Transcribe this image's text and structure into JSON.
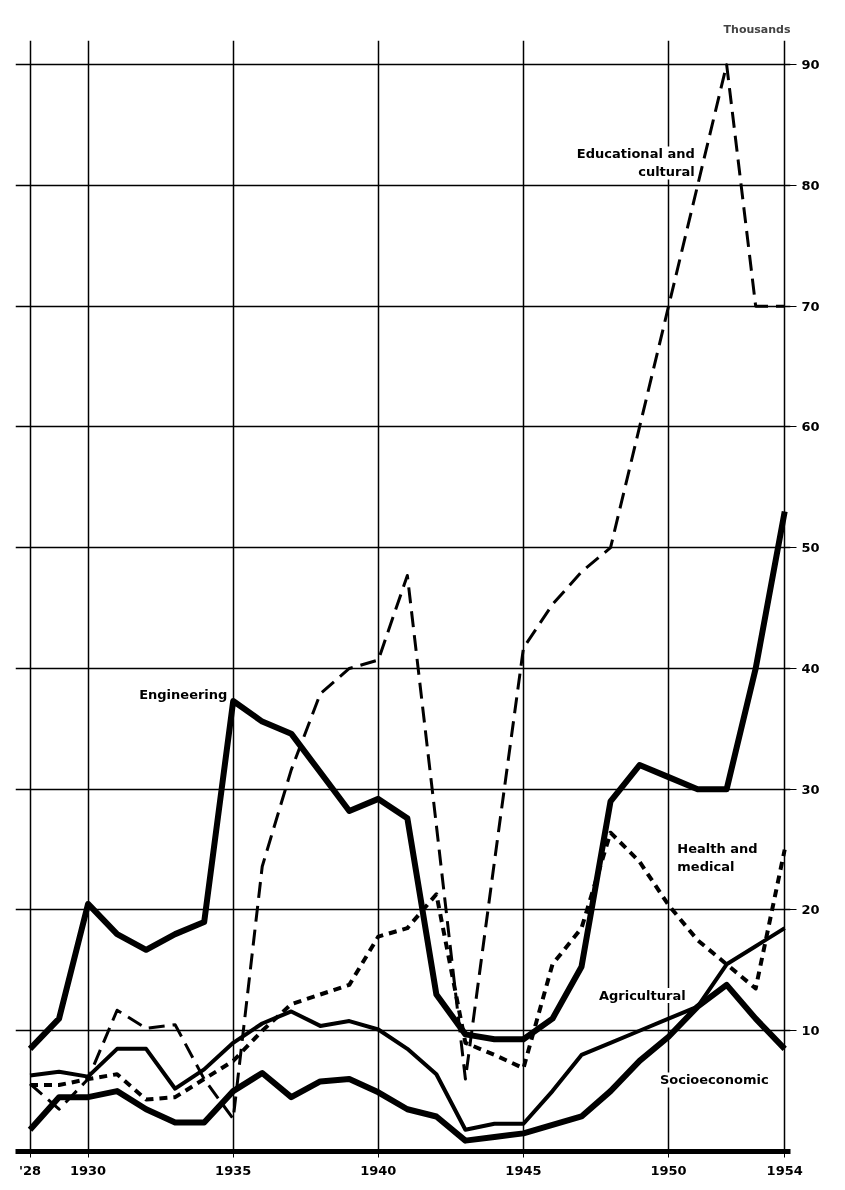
{
  "chart_data": {
    "type": "line",
    "ylabel": "Thousands",
    "x": [
      1928,
      1929,
      1930,
      1931,
      1932,
      1933,
      1934,
      1935,
      1936,
      1937,
      1938,
      1939,
      1940,
      1941,
      1942,
      1943,
      1944,
      1945,
      1946,
      1947,
      1948,
      1949,
      1950,
      1951,
      1952,
      1953,
      1954
    ],
    "series": [
      {
        "name": "Engineering",
        "color": "#000000",
        "line_style": "solid",
        "values": [
          8.5,
          11,
          20.5,
          18,
          16.7,
          18,
          19,
          37.3,
          35.6,
          34.6,
          31.4,
          28.2,
          29.2,
          27.6,
          13,
          9.7,
          9.3,
          9.3,
          11,
          15.3,
          29,
          32,
          31,
          30,
          30,
          40,
          53
        ]
      },
      {
        "name": "Educational and cultural",
        "color": "#000000",
        "line_style": "dashed",
        "values": [
          5.6,
          3.5,
          6,
          11.7,
          10.2,
          10.5,
          6,
          2.7,
          23.6,
          31.6,
          37.9,
          40,
          40.7,
          47.7,
          27,
          6,
          24,
          41.7,
          45.3,
          48,
          50,
          60,
          70,
          80,
          90,
          70,
          70
        ]
      },
      {
        "name": "Health and medical",
        "color": "#000000",
        "line_style": "dotted",
        "values": [
          5.5,
          5.5,
          6,
          6.4,
          4.3,
          4.5,
          6,
          7.5,
          10,
          12.2,
          13,
          13.8,
          17.8,
          18.5,
          21.3,
          9,
          8,
          6.9,
          15.5,
          18.5,
          26.4,
          24,
          20.4,
          17.5,
          15.5,
          13.5,
          25
        ]
      },
      {
        "name": "Agricultural",
        "color": "#000000",
        "line_style": "solid",
        "values": [
          6.3,
          6.6,
          6.2,
          8.5,
          8.5,
          5.2,
          6.8,
          9,
          10.6,
          11.6,
          10.4,
          10.8,
          10.1,
          8.5,
          6.4,
          1.8,
          2.3,
          2.3,
          5,
          8,
          9,
          10,
          11,
          12,
          15.5,
          17,
          18.5
        ]
      },
      {
        "name": "Socioeconomic",
        "color": "#000000",
        "line_style": "solid",
        "values": [
          1.8,
          4.5,
          4.5,
          5,
          3.5,
          2.4,
          2.4,
          5,
          6.5,
          4.5,
          5.8,
          6,
          4.9,
          3.5,
          2.9,
          0.9,
          1.2,
          1.5,
          2.2,
          2.9,
          5,
          7.5,
          9.5,
          12,
          13.8,
          11,
          8.5
        ]
      }
    ],
    "xlim": [
      1927.5,
      1954.2
    ],
    "xticks": [
      {
        "value": 1928,
        "label": "'28"
      },
      1930,
      1935,
      1940,
      1945,
      1950,
      1954
    ],
    "ylim": [
      0,
      92
    ],
    "yticks": [
      10,
      20,
      30,
      40,
      50,
      60,
      70,
      80,
      90
    ],
    "grid": true,
    "legend": false,
    "marker": "none"
  }
}
